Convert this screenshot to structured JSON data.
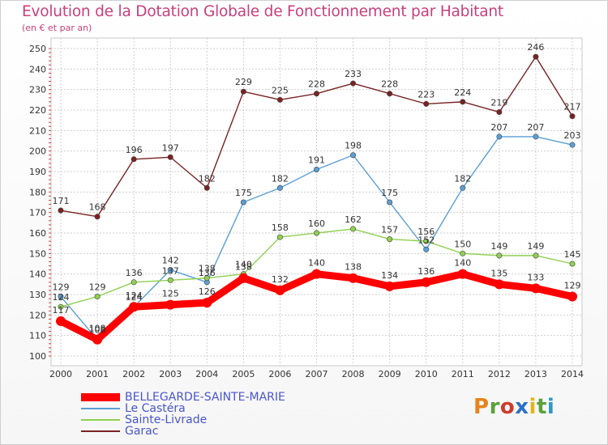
{
  "title": "Evolution de la Dotation Globale de Fonctionnement par Habitant",
  "subtitle": "(en € et par an)",
  "brand": "Proxiti",
  "chart_data": {
    "type": "line",
    "title": "Evolution de la Dotation Globale de Fonctionnement par Habitant",
    "subtitle": "(en € et par an)",
    "xlabel": "",
    "ylabel": "",
    "ylim": [
      100,
      250
    ],
    "yticks": [
      100,
      110,
      120,
      130,
      140,
      150,
      160,
      170,
      180,
      190,
      200,
      210,
      220,
      230,
      240,
      250
    ],
    "grid": true,
    "legend_position": "bottom-left",
    "categories": [
      "2000",
      "2001",
      "2002",
      "2003",
      "2004",
      "2005",
      "2006",
      "2007",
      "2008",
      "2009",
      "2010",
      "2011",
      "2012",
      "2013",
      "2014"
    ],
    "series": [
      {
        "name": "BELLEGARDE-SAINTE-MARIE",
        "color": "#ff0000",
        "values": [
          117,
          108,
          124,
          125,
          126,
          138,
          132,
          140,
          138,
          134,
          136,
          140,
          135,
          133,
          129
        ]
      },
      {
        "name": "Le Castéra",
        "color": "#5a9fd6",
        "values": [
          129,
          108,
          124,
          142,
          136,
          175,
          182,
          191,
          198,
          175,
          152,
          182,
          207,
          207,
          203
        ]
      },
      {
        "name": "Sainte-Livrade",
        "color": "#8fd14f",
        "values": [
          124,
          129,
          136,
          137,
          138,
          140,
          158,
          160,
          162,
          157,
          156,
          150,
          149,
          149,
          145
        ]
      },
      {
        "name": "Garac",
        "color": "#7a2222",
        "values": [
          171,
          168,
          196,
          197,
          182,
          229,
          225,
          228,
          233,
          228,
          223,
          224,
          219,
          246,
          217
        ]
      }
    ]
  }
}
